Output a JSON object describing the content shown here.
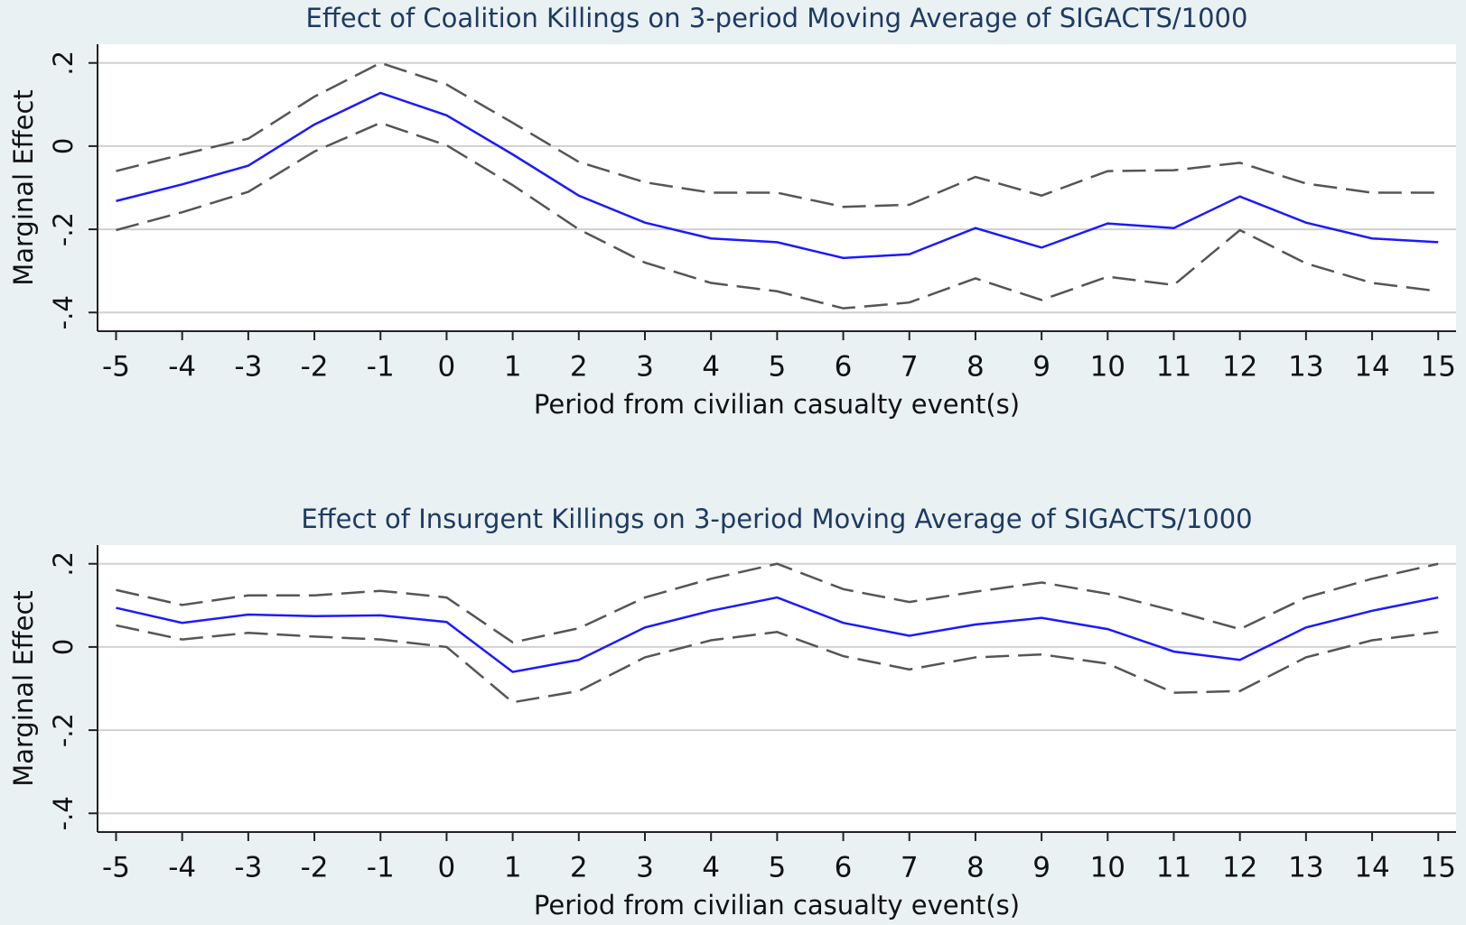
{
  "chart_data": [
    {
      "type": "line",
      "title": "Effect of Coalition Killings on 3-period Moving Average of SIGACTS/1000",
      "x_label": "Period from civilian casualty event(s)",
      "y_label": "Marginal Effect",
      "x": [
        -5,
        -4,
        -3,
        -2,
        -1,
        0,
        1,
        2,
        3,
        4,
        5,
        6,
        7,
        8,
        9,
        10,
        11,
        12,
        13,
        14,
        15
      ],
      "xlim": [
        -5.28,
        15.27
      ],
      "xticks": [
        -5,
        -4,
        -3,
        -2,
        -1,
        0,
        1,
        2,
        3,
        4,
        5,
        6,
        7,
        8,
        9,
        10,
        11,
        12,
        13,
        14,
        15
      ],
      "ylim": [
        -0.445,
        0.245
      ],
      "yticks": [
        {
          "value": 0.2,
          "label": ".2"
        },
        0,
        {
          "value": -0.2,
          "label": "-.2"
        },
        {
          "value": -0.4,
          "label": "-.4"
        }
      ],
      "grid": true,
      "series": [
        {
          "color": "#1a1aff",
          "dashed": false,
          "values": [
            -0.132,
            -0.092,
            -0.047,
            0.052,
            0.128,
            0.074,
            -0.02,
            -0.119,
            -0.184,
            -0.222,
            -0.231,
            -0.269,
            -0.26,
            -0.197,
            -0.244,
            -0.186,
            -0.197,
            -0.121,
            -0.184,
            -0.222,
            -0.231
          ]
        },
        {
          "color": "#555555",
          "dashed": true,
          "values": [
            -0.06,
            -0.02,
            0.018,
            0.119,
            0.2,
            0.148,
            0.056,
            -0.038,
            -0.087,
            -0.112,
            -0.112,
            -0.146,
            -0.141,
            -0.074,
            -0.119,
            -0.06,
            -0.058,
            -0.04,
            -0.09,
            -0.112,
            -0.112
          ]
        },
        {
          "color": "#555555",
          "dashed": true,
          "values": [
            -0.202,
            -0.159,
            -0.11,
            -0.013,
            0.056,
            0.002,
            -0.094,
            -0.2,
            -0.28,
            -0.329,
            -0.349,
            -0.39,
            -0.376,
            -0.318,
            -0.37,
            -0.314,
            -0.334,
            -0.202,
            -0.282,
            -0.329,
            -0.349
          ]
        }
      ]
    },
    {
      "type": "line",
      "title": "Effect of Insurgent Killings on 3-period Moving Average of SIGACTS/1000",
      "x_label": "Period from civilian casualty event(s)",
      "y_label": "Marginal Effect",
      "x": [
        -5,
        -4,
        -3,
        -2,
        -1,
        0,
        1,
        2,
        3,
        4,
        5,
        6,
        7,
        8,
        9,
        10,
        11,
        12,
        13,
        14,
        15
      ],
      "xlim": [
        -5.28,
        15.27
      ],
      "xticks": [
        -5,
        -4,
        -3,
        -2,
        -1,
        0,
        1,
        2,
        3,
        4,
        5,
        6,
        7,
        8,
        9,
        10,
        11,
        12,
        13,
        14,
        15
      ],
      "ylim": [
        -0.445,
        0.245
      ],
      "yticks": [
        {
          "value": 0.2,
          "label": ".2"
        },
        0,
        {
          "value": -0.2,
          "label": "-.2"
        },
        {
          "value": -0.4,
          "label": "-.4"
        }
      ],
      "grid": true,
      "series": [
        {
          "color": "#1a1aff",
          "dashed": false,
          "values": [
            0.094,
            0.058,
            0.078,
            0.074,
            0.076,
            0.06,
            -0.06,
            -0.031,
            0.047,
            0.087,
            0.119,
            0.058,
            0.027,
            0.054,
            0.07,
            0.043,
            -0.011,
            -0.031,
            0.047,
            0.087,
            0.119
          ]
        },
        {
          "color": "#555555",
          "dashed": true,
          "values": [
            0.137,
            0.101,
            0.124,
            0.124,
            0.135,
            0.119,
            0.011,
            0.045,
            0.119,
            0.164,
            0.2,
            0.139,
            0.108,
            0.133,
            0.155,
            0.128,
            0.087,
            0.043,
            0.119,
            0.164,
            0.2
          ]
        },
        {
          "color": "#555555",
          "dashed": true,
          "values": [
            0.052,
            0.018,
            0.034,
            0.025,
            0.018,
            0,
            -0.133,
            -0.106,
            -0.025,
            0.016,
            0.036,
            -0.022,
            -0.054,
            -0.025,
            -0.018,
            -0.04,
            -0.11,
            -0.106,
            -0.025,
            0.016,
            0.036
          ]
        }
      ]
    }
  ]
}
